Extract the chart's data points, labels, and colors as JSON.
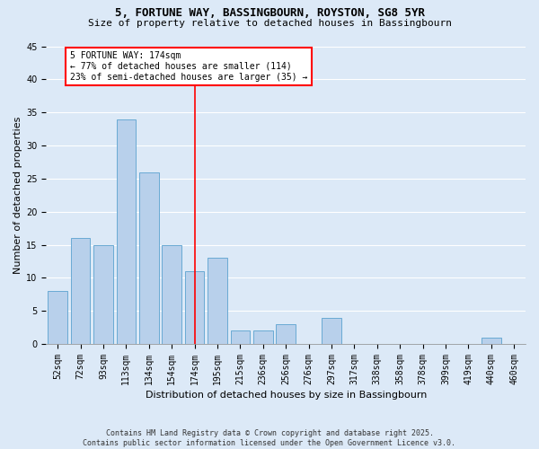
{
  "title1": "5, FORTUNE WAY, BASSINGBOURN, ROYSTON, SG8 5YR",
  "title2": "Size of property relative to detached houses in Bassingbourn",
  "xlabel": "Distribution of detached houses by size in Bassingbourn",
  "ylabel": "Number of detached properties",
  "categories": [
    "52sqm",
    "72sqm",
    "93sqm",
    "113sqm",
    "134sqm",
    "154sqm",
    "174sqm",
    "195sqm",
    "215sqm",
    "236sqm",
    "256sqm",
    "276sqm",
    "297sqm",
    "317sqm",
    "338sqm",
    "358sqm",
    "378sqm",
    "399sqm",
    "419sqm",
    "440sqm",
    "460sqm"
  ],
  "values": [
    8,
    16,
    15,
    34,
    26,
    15,
    11,
    13,
    2,
    2,
    3,
    0,
    4,
    0,
    0,
    0,
    0,
    0,
    0,
    1,
    0
  ],
  "bar_color": "#b8d0eb",
  "bar_edge_color": "#6aaad4",
  "highlight_line_index": 6,
  "highlight_line_color": "red",
  "annotation_text": "5 FORTUNE WAY: 174sqm\n← 77% of detached houses are smaller (114)\n23% of semi-detached houses are larger (35) →",
  "annotation_box_color": "white",
  "annotation_box_edge_color": "red",
  "ylim": [
    0,
    45
  ],
  "yticks": [
    0,
    5,
    10,
    15,
    20,
    25,
    30,
    35,
    40,
    45
  ],
  "bg_color": "#dce9f7",
  "footer_text": "Contains HM Land Registry data © Crown copyright and database right 2025.\nContains public sector information licensed under the Open Government Licence v3.0.",
  "grid_color": "#ffffff",
  "title1_fontsize": 9,
  "title2_fontsize": 8,
  "tick_fontsize": 7,
  "ylabel_fontsize": 8,
  "xlabel_fontsize": 8,
  "annot_fontsize": 7
}
